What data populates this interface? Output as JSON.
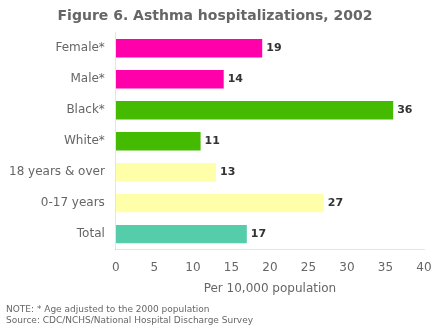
{
  "chart_data": {
    "type": "bar",
    "orientation": "horizontal",
    "title": "Figure 6. Asthma hospitalizations, 2002",
    "categories": [
      "Female*",
      "Male*",
      "Black*",
      "White*",
      "18 years & over",
      "0-17 years",
      "Total"
    ],
    "values": [
      19,
      14,
      36,
      11,
      13,
      27,
      17
    ],
    "colors": [
      "#FF00AA",
      "#FF00AA",
      "#44BB00",
      "#44BB00",
      "#FFFFAA",
      "#FFFFAA",
      "#55CCAA"
    ],
    "xlabel": "Per 10,000 population",
    "xlim": [
      0,
      40
    ],
    "xticks": [
      0,
      5,
      10,
      15,
      20,
      25,
      30,
      35,
      40
    ],
    "grid": false,
    "data_labels": true,
    "annotations": [
      "NOTE: * Age adjusted to the 2000 population",
      "Source: CDC/NCHS/National Hospital Discharge Survey"
    ]
  }
}
